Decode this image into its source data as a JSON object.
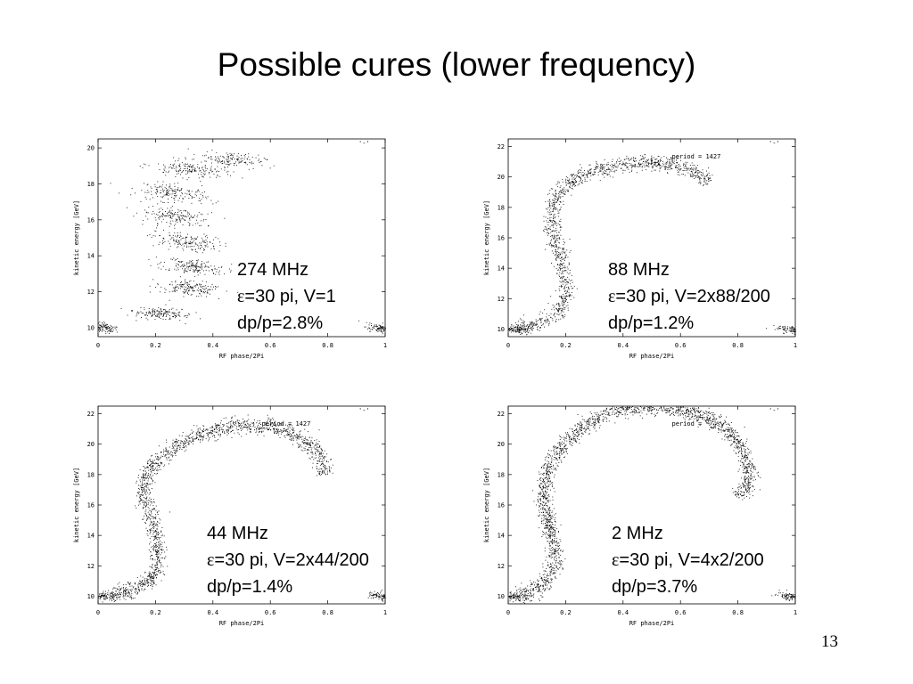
{
  "slide": {
    "title": "Possible cures (lower frequency)",
    "page_number": "13"
  },
  "chart_data": [
    {
      "type": "scatter",
      "xlabel": "RF phase/2Pi",
      "ylabel": "kinetic energy [GeV]",
      "key_label": "'-'",
      "period_label": "",
      "xlim": [
        0,
        1
      ],
      "ylim": [
        9.5,
        20.5
      ],
      "xticks": [
        "0",
        "0.2",
        "0.4",
        "0.6",
        "0.8",
        "1"
      ],
      "yticks": [
        "10",
        "12",
        "14",
        "16",
        "18",
        "20"
      ],
      "ytick_values": [
        10,
        12,
        14,
        16,
        18,
        20
      ],
      "clusters": [
        {
          "x": 0.02,
          "y": 10.0,
          "w": 0.05,
          "h": 0.3,
          "n": 110
        },
        {
          "x": 0.98,
          "y": 10.0,
          "w": 0.05,
          "h": 0.3,
          "n": 110
        },
        {
          "x": 0.22,
          "y": 10.8,
          "w": 0.11,
          "h": 0.35,
          "n": 160
        },
        {
          "x": 0.32,
          "y": 12.2,
          "w": 0.11,
          "h": 0.45,
          "n": 170
        },
        {
          "x": 0.33,
          "y": 13.4,
          "w": 0.12,
          "h": 0.5,
          "n": 170
        },
        {
          "x": 0.3,
          "y": 14.8,
          "w": 0.13,
          "h": 0.55,
          "n": 170
        },
        {
          "x": 0.27,
          "y": 16.2,
          "w": 0.13,
          "h": 0.55,
          "n": 170
        },
        {
          "x": 0.26,
          "y": 17.5,
          "w": 0.13,
          "h": 0.55,
          "n": 170
        },
        {
          "x": 0.32,
          "y": 18.8,
          "w": 0.14,
          "h": 0.5,
          "n": 170
        },
        {
          "x": 0.46,
          "y": 19.4,
          "w": 0.12,
          "h": 0.45,
          "n": 140
        }
      ],
      "annotation": {
        "frequency": "274 MHz",
        "params": "=30 pi, V=1",
        "spread": "dp/p=2.8%"
      }
    },
    {
      "type": "scatter",
      "xlabel": "RF phase/2Pi",
      "ylabel": "kinetic energy [GeV]",
      "key_label": "'-'",
      "period_label": "period =   1427",
      "xlim": [
        0,
        1
      ],
      "ylim": [
        9.5,
        22.5
      ],
      "xticks": [
        "0",
        "0.2",
        "0.4",
        "0.6",
        "0.8",
        "1"
      ],
      "yticks": [
        "10",
        "12",
        "14",
        "16",
        "18",
        "20",
        "22"
      ],
      "ytick_values": [
        10,
        12,
        14,
        16,
        18,
        20,
        22
      ],
      "band": {
        "points": [
          [
            0.03,
            10.0
          ],
          [
            0.12,
            10.5
          ],
          [
            0.19,
            11.3
          ],
          [
            0.2,
            12.5
          ],
          [
            0.19,
            14.0
          ],
          [
            0.17,
            15.5
          ],
          [
            0.15,
            17.0
          ],
          [
            0.16,
            18.5
          ],
          [
            0.22,
            19.8
          ],
          [
            0.32,
            20.6
          ],
          [
            0.45,
            21.0
          ],
          [
            0.57,
            20.9
          ],
          [
            0.66,
            20.3
          ],
          [
            0.7,
            19.6
          ]
        ],
        "width": [
          0.05,
          0.5
        ],
        "n": 1400
      },
      "clusters": [
        {
          "x": 0.02,
          "y": 10.0,
          "w": 0.05,
          "h": 0.3,
          "n": 90
        },
        {
          "x": 0.98,
          "y": 10.0,
          "w": 0.05,
          "h": 0.3,
          "n": 90
        }
      ],
      "annotation": {
        "frequency": "88 MHz",
        "params": "=30 pi, V=2x88/200",
        "spread": "dp/p=1.2%"
      }
    },
    {
      "type": "scatter",
      "xlabel": "RF phase/2Pi",
      "ylabel": "kinetic energy [GeV]",
      "key_label": "'-'",
      "period_label": "period =   1427",
      "xlim": [
        0,
        1
      ],
      "ylim": [
        9.5,
        22.5
      ],
      "xticks": [
        "0",
        "0.2",
        "0.4",
        "0.6",
        "0.8",
        "1"
      ],
      "yticks": [
        "10",
        "12",
        "14",
        "16",
        "18",
        "20",
        "22"
      ],
      "ytick_values": [
        10,
        12,
        14,
        16,
        18,
        20,
        22
      ],
      "band": {
        "points": [
          [
            0.04,
            10.0
          ],
          [
            0.12,
            10.4
          ],
          [
            0.19,
            11.2
          ],
          [
            0.21,
            12.4
          ],
          [
            0.2,
            14.0
          ],
          [
            0.18,
            15.5
          ],
          [
            0.15,
            17.0
          ],
          [
            0.18,
            18.5
          ],
          [
            0.26,
            19.8
          ],
          [
            0.38,
            20.9
          ],
          [
            0.5,
            21.3
          ],
          [
            0.62,
            21.1
          ],
          [
            0.72,
            20.3
          ],
          [
            0.78,
            19.0
          ],
          [
            0.79,
            18.0
          ]
        ],
        "width": [
          0.06,
          0.7
        ],
        "n": 1700
      },
      "clusters": [
        {
          "x": 0.02,
          "y": 10.0,
          "w": 0.05,
          "h": 0.3,
          "n": 90
        },
        {
          "x": 0.98,
          "y": 10.0,
          "w": 0.05,
          "h": 0.3,
          "n": 90
        }
      ],
      "annotation": {
        "frequency": "44 MHz",
        "params": "=30 pi, V=2x44/200",
        "spread": "dp/p=1.4%"
      }
    },
    {
      "type": "scatter",
      "xlabel": "RF phase/2Pi",
      "ylabel": "kinetic energy [GeV]",
      "key_label": "'-'",
      "period_label": "period =",
      "xlim": [
        0,
        1
      ],
      "ylim": [
        9.5,
        22.5
      ],
      "xticks": [
        "0",
        "0.2",
        "0.4",
        "0.6",
        "0.8",
        "1"
      ],
      "yticks": [
        "10",
        "12",
        "14",
        "16",
        "18",
        "20",
        "22"
      ],
      "ytick_values": [
        10,
        12,
        14,
        16,
        18,
        20,
        22
      ],
      "band": {
        "points": [
          [
            0.03,
            10.0
          ],
          [
            0.11,
            10.6
          ],
          [
            0.16,
            11.8
          ],
          [
            0.16,
            13.2
          ],
          [
            0.14,
            14.8
          ],
          [
            0.12,
            16.5
          ],
          [
            0.13,
            18.2
          ],
          [
            0.19,
            20.0
          ],
          [
            0.28,
            21.5
          ],
          [
            0.4,
            22.4
          ],
          [
            0.55,
            22.5
          ],
          [
            0.67,
            22.0
          ],
          [
            0.77,
            20.8
          ],
          [
            0.83,
            19.2
          ],
          [
            0.84,
            17.6
          ],
          [
            0.8,
            16.5
          ]
        ],
        "width": [
          0.1,
          0.9
        ],
        "n": 2200
      },
      "clusters": [
        {
          "x": 0.02,
          "y": 10.0,
          "w": 0.05,
          "h": 0.3,
          "n": 90
        },
        {
          "x": 0.98,
          "y": 10.0,
          "w": 0.05,
          "h": 0.3,
          "n": 90
        }
      ],
      "annotation": {
        "frequency": "2 MHz",
        "params": "=30 pi, V=4x2/200",
        "spread": "dp/p=3.7%"
      }
    }
  ],
  "symbols": {
    "epsilon": "ε"
  }
}
